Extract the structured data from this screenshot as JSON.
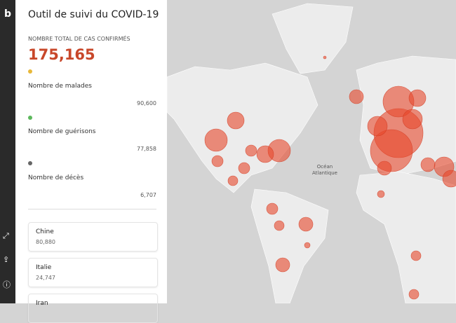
{
  "panel": {
    "title": "Outil de suivi du COVID-19",
    "total_label": "NOMBRE TOTAL DE CAS CONFIRMÉS",
    "total_value": "175,165",
    "stats": [
      {
        "label": "Nombre de malades",
        "value": "90,600"
      },
      {
        "label": "Nombre de guérisons",
        "value": "77,858"
      },
      {
        "label": "Nombre de décès",
        "value": "6,707"
      }
    ],
    "countries": [
      {
        "name": "Chine",
        "value": "80,880"
      },
      {
        "name": "Italie",
        "value": "24,747"
      },
      {
        "name": "Iran"
      }
    ]
  },
  "map": {
    "ocean_label": [
      "Océan",
      "Atlantique"
    ]
  }
}
